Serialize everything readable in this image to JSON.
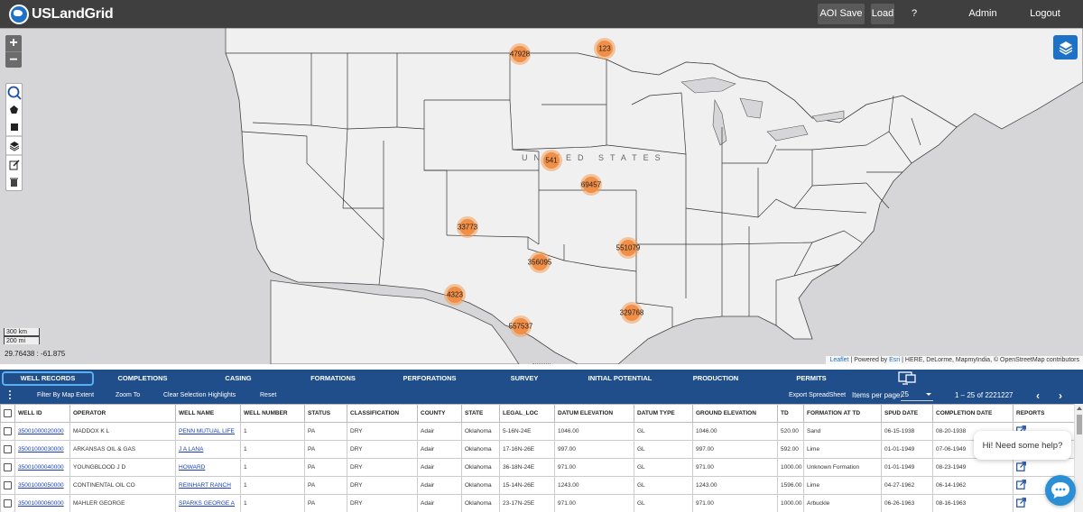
{
  "app": {
    "logo_text": "USLandGrid",
    "nav": {
      "aoi_save_as": "AOI Save As",
      "load": "Load",
      "help": "?",
      "admin_board": "Admin Board",
      "logout": "Logout"
    }
  },
  "map": {
    "zoom_in": "+",
    "zoom_out": "−",
    "country_label": "UNITED STATES",
    "scale_km": "300 km",
    "scale_mi": "200 mi",
    "coordinates": "29.76438 : -61.875",
    "attribution_leaflet": "Leaflet",
    "attribution_powered": "| Powered by",
    "attribution_esri": "Esri",
    "attribution_rest": "| HERE, DeLorme, MapmyIndia, © OpenStreetMap contributors",
    "clusters": [
      {
        "count": "47928"
      },
      {
        "count": "123"
      },
      {
        "count": "541"
      },
      {
        "count": "69457"
      },
      {
        "count": "33773"
      },
      {
        "count": "551079"
      },
      {
        "count": "356095"
      },
      {
        "count": "4323"
      },
      {
        "count": "329768"
      },
      {
        "count": "557537"
      }
    ],
    "colors": {
      "land": "#f0f0f0",
      "water": "#d6d6d8",
      "cluster": "#f28f47"
    }
  },
  "tabs": [
    {
      "label": "WELL RECORDS",
      "active": true
    },
    {
      "label": "COMPLETIONS"
    },
    {
      "label": "CASING"
    },
    {
      "label": "FORMATIONS"
    },
    {
      "label": "PERFORATIONS"
    },
    {
      "label": "SURVEY"
    },
    {
      "label": "INITIAL POTENTIAL"
    },
    {
      "label": "PRODUCTION"
    },
    {
      "label": "PERMITS"
    }
  ],
  "toolbar": {
    "filter_by_map_extent": "Filter By Map Extent",
    "zoom_to": "Zoom To",
    "clear_selection_highlights": "Clear Selection Highlights",
    "reset": "Reset",
    "export_spreadsheet": "Export SpreadSheet",
    "items_per_page_label": "Items per page:",
    "items_per_page_value": "25",
    "range_label": "1 – 25 of 2221227",
    "prev": "‹",
    "next": "›"
  },
  "table": {
    "columns": [
      "WELL ID",
      "OPERATOR",
      "WELL NAME",
      "WELL NUMBER",
      "STATUS",
      "CLASSIFICATION",
      "COUNTY",
      "STATE",
      "LEGAL_LOC",
      "DATUM ELEVATION",
      "DATUM TYPE",
      "GROUND ELEVATION",
      "TD",
      "FORMATION AT TD",
      "SPUD DATE",
      "COMPLETION DATE",
      "REPORTS"
    ],
    "rows": [
      {
        "well_id": "35001000020000",
        "operator": "MADDOX K L",
        "well_name": "PENN MUTUAL LIFE",
        "well_number": "1",
        "status": "PA",
        "classification": "DRY",
        "county": "Adair",
        "state": "Oklahoma",
        "legal_loc": "5-16N-24E",
        "datum_elevation": "1046.00",
        "datum_type": "GL",
        "ground_elevation": "1046.00",
        "td": "520.00",
        "formation_at_td": "Sand",
        "spud_date": "06-15-1938",
        "completion_date": "08-20-1938"
      },
      {
        "well_id": "35001000030000",
        "operator": "ARKANSAS OIL & GAS",
        "well_name": "J A LANA",
        "well_number": "1",
        "status": "PA",
        "classification": "DRY",
        "county": "Adair",
        "state": "Oklahoma",
        "legal_loc": "17-16N-26E",
        "datum_elevation": "997.00",
        "datum_type": "GL",
        "ground_elevation": "997.00",
        "td": "592.00",
        "formation_at_td": "Lime",
        "spud_date": "01-01-1949",
        "completion_date": "07-06-1949"
      },
      {
        "well_id": "35001000040000",
        "operator": "YOUNGBLOOD J D",
        "well_name": "HOWARD",
        "well_number": "1",
        "status": "PA",
        "classification": "DRY",
        "county": "Adair",
        "state": "Oklahoma",
        "legal_loc": "36-18N-24E",
        "datum_elevation": "971.00",
        "datum_type": "GL",
        "ground_elevation": "971.00",
        "td": "1000.00",
        "formation_at_td": "Unknown Formation",
        "spud_date": "01-01-1949",
        "completion_date": "08-23-1949"
      },
      {
        "well_id": "35001000050000",
        "operator": "CONTINENTAL OIL CO",
        "well_name": "REINHART RANCH",
        "well_number": "1",
        "status": "PA",
        "classification": "DRY",
        "county": "Adair",
        "state": "Oklahoma",
        "legal_loc": "15-14N-26E",
        "datum_elevation": "1243.00",
        "datum_type": "GL",
        "ground_elevation": "1243.00",
        "td": "1596.00",
        "formation_at_td": "Lime",
        "spud_date": "04-27-1962",
        "completion_date": "06-14-1962"
      },
      {
        "well_id": "35001000060000",
        "operator": "MAHLER GEORGE",
        "well_name": "SPARKS GEORGE A",
        "well_number": "1",
        "status": "PA",
        "classification": "DRY",
        "county": "Adair",
        "state": "Oklahoma",
        "legal_loc": "23-17N-25E",
        "datum_elevation": "971.00",
        "datum_type": "GL",
        "ground_elevation": "971.00",
        "td": "1000.00",
        "formation_at_td": "Arbuckle",
        "spud_date": "06-26-1963",
        "completion_date": "08-16-1963"
      }
    ]
  },
  "chat": {
    "greeting": "Hi! Need some help?"
  }
}
